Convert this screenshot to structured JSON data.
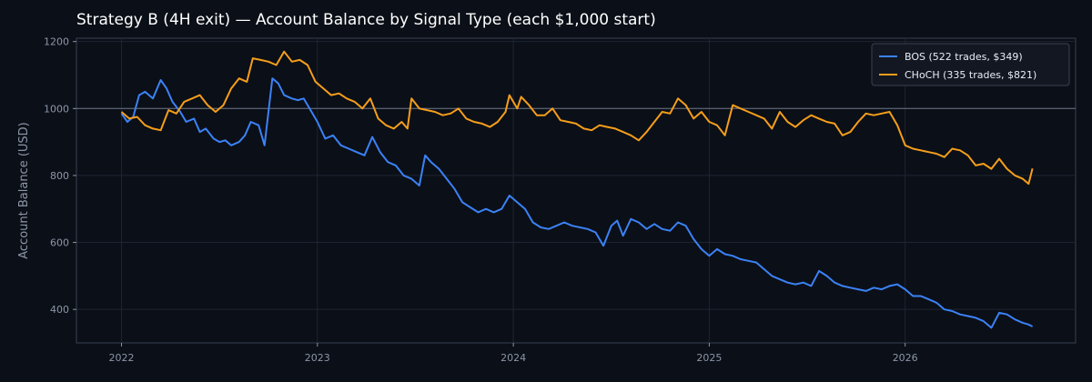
{
  "chart_data": {
    "type": "line",
    "title": "Strategy B (4H exit) — Account Balance by Signal Type (each $1,000 start)",
    "xlabel": "",
    "ylabel": "Account Balance (USD)",
    "x_ticks": [
      "2022",
      "2023",
      "2024",
      "2025",
      "2026"
    ],
    "y_ticks": [
      400,
      600,
      800,
      1000,
      1200
    ],
    "xlim": [
      2021.77,
      2026.87
    ],
    "ylim": [
      300,
      1210
    ],
    "reference_line": 1000,
    "grid": true,
    "legend_position": "top-right",
    "series": [
      {
        "name": "BOS (522 trades, $349)",
        "color": "#3b82f6",
        "points": [
          [
            2022.0,
            985
          ],
          [
            2022.03,
            960
          ],
          [
            2022.06,
            975
          ],
          [
            2022.09,
            1040
          ],
          [
            2022.12,
            1050
          ],
          [
            2022.16,
            1030
          ],
          [
            2022.2,
            1085
          ],
          [
            2022.23,
            1060
          ],
          [
            2022.26,
            1020
          ],
          [
            2022.3,
            990
          ],
          [
            2022.33,
            960
          ],
          [
            2022.37,
            970
          ],
          [
            2022.4,
            930
          ],
          [
            2022.43,
            940
          ],
          [
            2022.47,
            910
          ],
          [
            2022.5,
            900
          ],
          [
            2022.53,
            905
          ],
          [
            2022.56,
            890
          ],
          [
            2022.6,
            900
          ],
          [
            2022.63,
            920
          ],
          [
            2022.66,
            960
          ],
          [
            2022.7,
            950
          ],
          [
            2022.73,
            890
          ],
          [
            2022.77,
            1090
          ],
          [
            2022.8,
            1075
          ],
          [
            2022.83,
            1040
          ],
          [
            2022.87,
            1030
          ],
          [
            2022.9,
            1025
          ],
          [
            2022.93,
            1030
          ],
          [
            2022.97,
            990
          ],
          [
            2023.0,
            960
          ],
          [
            2023.04,
            910
          ],
          [
            2023.08,
            920
          ],
          [
            2023.12,
            890
          ],
          [
            2023.16,
            880
          ],
          [
            2023.2,
            870
          ],
          [
            2023.24,
            860
          ],
          [
            2023.28,
            915
          ],
          [
            2023.32,
            870
          ],
          [
            2023.36,
            840
          ],
          [
            2023.4,
            830
          ],
          [
            2023.44,
            800
          ],
          [
            2023.48,
            790
          ],
          [
            2023.52,
            770
          ],
          [
            2023.55,
            860
          ],
          [
            2023.58,
            840
          ],
          [
            2023.62,
            820
          ],
          [
            2023.66,
            790
          ],
          [
            2023.7,
            760
          ],
          [
            2023.74,
            720
          ],
          [
            2023.78,
            705
          ],
          [
            2023.82,
            690
          ],
          [
            2023.86,
            700
          ],
          [
            2023.9,
            690
          ],
          [
            2023.94,
            700
          ],
          [
            2023.98,
            740
          ],
          [
            2024.02,
            720
          ],
          [
            2024.06,
            700
          ],
          [
            2024.1,
            660
          ],
          [
            2024.14,
            645
          ],
          [
            2024.18,
            640
          ],
          [
            2024.22,
            650
          ],
          [
            2024.26,
            660
          ],
          [
            2024.3,
            650
          ],
          [
            2024.34,
            645
          ],
          [
            2024.38,
            640
          ],
          [
            2024.42,
            630
          ],
          [
            2024.46,
            590
          ],
          [
            2024.5,
            650
          ],
          [
            2024.53,
            665
          ],
          [
            2024.56,
            620
          ],
          [
            2024.6,
            670
          ],
          [
            2024.64,
            660
          ],
          [
            2024.68,
            640
          ],
          [
            2024.72,
            655
          ],
          [
            2024.76,
            640
          ],
          [
            2024.8,
            635
          ],
          [
            2024.84,
            660
          ],
          [
            2024.88,
            650
          ],
          [
            2024.92,
            610
          ],
          [
            2024.96,
            580
          ],
          [
            2025.0,
            560
          ],
          [
            2025.04,
            580
          ],
          [
            2025.08,
            565
          ],
          [
            2025.12,
            560
          ],
          [
            2025.16,
            550
          ],
          [
            2025.2,
            545
          ],
          [
            2025.24,
            540
          ],
          [
            2025.28,
            520
          ],
          [
            2025.32,
            500
          ],
          [
            2025.36,
            490
          ],
          [
            2025.4,
            480
          ],
          [
            2025.44,
            475
          ],
          [
            2025.48,
            480
          ],
          [
            2025.52,
            470
          ],
          [
            2025.56,
            515
          ],
          [
            2025.6,
            500
          ],
          [
            2025.64,
            480
          ],
          [
            2025.68,
            470
          ],
          [
            2025.72,
            465
          ],
          [
            2025.76,
            460
          ],
          [
            2025.8,
            455
          ],
          [
            2025.84,
            465
          ],
          [
            2025.88,
            460
          ],
          [
            2025.92,
            470
          ],
          [
            2025.96,
            475
          ],
          [
            2026.0,
            460
          ],
          [
            2026.04,
            440
          ],
          [
            2026.08,
            440
          ],
          [
            2026.12,
            430
          ],
          [
            2026.16,
            420
          ],
          [
            2026.2,
            400
          ],
          [
            2026.24,
            395
          ],
          [
            2026.28,
            385
          ],
          [
            2026.32,
            380
          ],
          [
            2026.36,
            375
          ],
          [
            2026.4,
            365
          ],
          [
            2026.44,
            345
          ],
          [
            2026.48,
            390
          ],
          [
            2026.52,
            385
          ],
          [
            2026.56,
            370
          ],
          [
            2026.6,
            360
          ],
          [
            2026.63,
            355
          ],
          [
            2026.65,
            349
          ]
        ]
      },
      {
        "name": "CHoCH (335 trades, $821)",
        "color": "#f59e1b",
        "points": [
          [
            2022.0,
            990
          ],
          [
            2022.04,
            970
          ],
          [
            2022.08,
            975
          ],
          [
            2022.12,
            950
          ],
          [
            2022.16,
            940
          ],
          [
            2022.2,
            935
          ],
          [
            2022.24,
            995
          ],
          [
            2022.28,
            985
          ],
          [
            2022.32,
            1020
          ],
          [
            2022.36,
            1030
          ],
          [
            2022.4,
            1040
          ],
          [
            2022.44,
            1010
          ],
          [
            2022.48,
            990
          ],
          [
            2022.52,
            1010
          ],
          [
            2022.56,
            1060
          ],
          [
            2022.6,
            1090
          ],
          [
            2022.64,
            1080
          ],
          [
            2022.67,
            1150
          ],
          [
            2022.71,
            1145
          ],
          [
            2022.75,
            1140
          ],
          [
            2022.79,
            1130
          ],
          [
            2022.83,
            1170
          ],
          [
            2022.87,
            1140
          ],
          [
            2022.91,
            1145
          ],
          [
            2022.95,
            1130
          ],
          [
            2022.99,
            1080
          ],
          [
            2023.03,
            1060
          ],
          [
            2023.07,
            1040
          ],
          [
            2023.11,
            1045
          ],
          [
            2023.15,
            1030
          ],
          [
            2023.19,
            1020
          ],
          [
            2023.23,
            1000
          ],
          [
            2023.27,
            1030
          ],
          [
            2023.31,
            970
          ],
          [
            2023.35,
            950
          ],
          [
            2023.39,
            940
          ],
          [
            2023.43,
            960
          ],
          [
            2023.46,
            940
          ],
          [
            2023.48,
            1030
          ],
          [
            2023.52,
            1000
          ],
          [
            2023.56,
            995
          ],
          [
            2023.6,
            990
          ],
          [
            2023.64,
            980
          ],
          [
            2023.68,
            985
          ],
          [
            2023.72,
            1000
          ],
          [
            2023.76,
            970
          ],
          [
            2023.8,
            960
          ],
          [
            2023.84,
            955
          ],
          [
            2023.88,
            945
          ],
          [
            2023.92,
            960
          ],
          [
            2023.96,
            990
          ],
          [
            2023.98,
            1040
          ],
          [
            2024.02,
            1000
          ],
          [
            2024.04,
            1035
          ],
          [
            2024.08,
            1010
          ],
          [
            2024.12,
            980
          ],
          [
            2024.16,
            980
          ],
          [
            2024.2,
            1000
          ],
          [
            2024.24,
            965
          ],
          [
            2024.28,
            960
          ],
          [
            2024.32,
            955
          ],
          [
            2024.36,
            940
          ],
          [
            2024.4,
            935
          ],
          [
            2024.44,
            950
          ],
          [
            2024.48,
            945
          ],
          [
            2024.52,
            940
          ],
          [
            2024.56,
            930
          ],
          [
            2024.6,
            920
          ],
          [
            2024.64,
            905
          ],
          [
            2024.68,
            930
          ],
          [
            2024.72,
            960
          ],
          [
            2024.76,
            990
          ],
          [
            2024.8,
            985
          ],
          [
            2024.84,
            1030
          ],
          [
            2024.88,
            1010
          ],
          [
            2024.92,
            970
          ],
          [
            2024.96,
            990
          ],
          [
            2025.0,
            960
          ],
          [
            2025.04,
            950
          ],
          [
            2025.08,
            920
          ],
          [
            2025.12,
            1010
          ],
          [
            2025.16,
            1000
          ],
          [
            2025.2,
            990
          ],
          [
            2025.24,
            980
          ],
          [
            2025.28,
            970
          ],
          [
            2025.32,
            940
          ],
          [
            2025.36,
            990
          ],
          [
            2025.4,
            960
          ],
          [
            2025.44,
            945
          ],
          [
            2025.48,
            965
          ],
          [
            2025.52,
            980
          ],
          [
            2025.56,
            970
          ],
          [
            2025.6,
            960
          ],
          [
            2025.64,
            955
          ],
          [
            2025.68,
            920
          ],
          [
            2025.72,
            930
          ],
          [
            2025.76,
            960
          ],
          [
            2025.8,
            985
          ],
          [
            2025.84,
            980
          ],
          [
            2025.88,
            985
          ],
          [
            2025.92,
            990
          ],
          [
            2025.96,
            950
          ],
          [
            2026.0,
            890
          ],
          [
            2026.04,
            880
          ],
          [
            2026.08,
            875
          ],
          [
            2026.12,
            870
          ],
          [
            2026.16,
            865
          ],
          [
            2026.2,
            855
          ],
          [
            2026.24,
            880
          ],
          [
            2026.28,
            875
          ],
          [
            2026.32,
            860
          ],
          [
            2026.36,
            830
          ],
          [
            2026.4,
            835
          ],
          [
            2026.44,
            820
          ],
          [
            2026.48,
            850
          ],
          [
            2026.52,
            820
          ],
          [
            2026.56,
            800
          ],
          [
            2026.6,
            790
          ],
          [
            2026.63,
            775
          ],
          [
            2026.65,
            821
          ]
        ]
      }
    ]
  }
}
